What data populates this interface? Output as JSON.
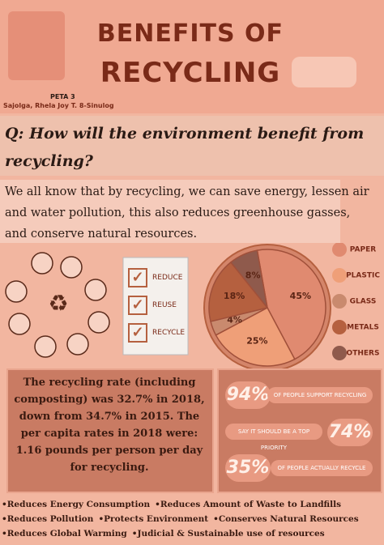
{
  "header": {
    "title_line1": "BENEFITS OF",
    "title_line2": "RECYCLING",
    "course": "PETA 3",
    "author": "Sajolga, Rhela Joy T. 8-Sinulog"
  },
  "question": "Q: How will the environment benefit from recycling?",
  "intro": "We all know that by recycling, we can save energy, lessen air and water pollution, this also reduces greenhouse gasses, and conserve natural resources.",
  "checklist": [
    "REDUCE",
    "REUSE",
    "RECYCLE"
  ],
  "pie": {
    "values": [
      45,
      25,
      4,
      18,
      8
    ],
    "value_labels": [
      "45%",
      "25%",
      "4%",
      "18%",
      "8%"
    ],
    "legend": [
      "PAPER",
      "PLASTIC",
      "GLASS",
      "METALS",
      "OTHERS"
    ],
    "colors": [
      "#e08a70",
      "#ef9f78",
      "#c98a6e",
      "#b5603f",
      "#8f5a4c"
    ]
  },
  "rate_text": "The recycling rate (including composting) was 32.7% in 2018, down from 34.7% in 2015. The per capita rates in 2018 were: 1.16 pounds per person per day for recycling.",
  "stats": [
    {
      "value": "94%",
      "label": "OF PEOPLE SUPPORT RECYCLING"
    },
    {
      "value": "74%",
      "label": "SAY IT SHOULD BE A TOP PRIORITY"
    },
    {
      "value": "35%",
      "label": "OF PEOPLE ACTUALLY RECYCLE"
    }
  ],
  "benefits": [
    [
      "•Reduces Energy Consumption",
      "•Reduces Amount of Waste to Landfills"
    ],
    [
      "•Reduces Pollution",
      "•Protects Environment",
      "•Conserves Natural Resources"
    ],
    [
      "•Reduces Global Warming",
      "•Judicial & Sustainable use of resources"
    ]
  ]
}
